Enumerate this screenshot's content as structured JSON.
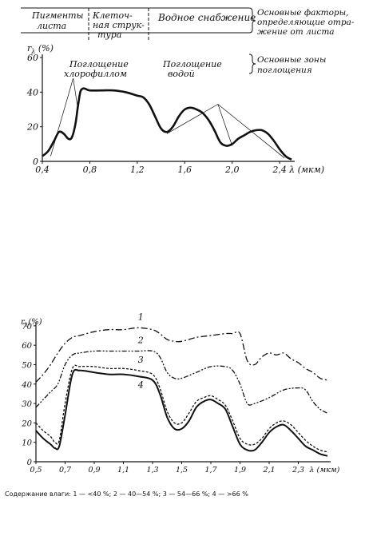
{
  "chart_data": [
    {
      "type": "line",
      "ylabel": "rλ (%)",
      "xlabel": "λ (мкм)",
      "x_tick_labels": [
        "0,4",
        "0,8",
        "1,2",
        "1,6",
        "2,0",
        "2,4"
      ],
      "x_unit_label": "λ (мкм)",
      "y_tick_labels": [
        "0",
        "20",
        "40",
        "60"
      ],
      "xlim": [
        0.4,
        2.5
      ],
      "ylim": [
        0,
        60
      ],
      "grid": false,
      "header": {
        "factors_label": "Основные факторы, определяющие отражение от листа",
        "sections": [
          "Пигменты листа",
          "Клеточная структура",
          "Водное снабжение"
        ]
      },
      "zones_label": "Основные зоны поглощения",
      "annotations": [
        "Поглощение хлорофиллом",
        "Поглощение водой"
      ],
      "series": [
        {
          "x": [
            0.4,
            0.45,
            0.5,
            0.54,
            0.58,
            0.62,
            0.65,
            0.68,
            0.7,
            0.72,
            0.74,
            0.76,
            0.8,
            0.9,
            1.0,
            1.1,
            1.2,
            1.25,
            1.3,
            1.35,
            1.4,
            1.45,
            1.5,
            1.55,
            1.6,
            1.65,
            1.7,
            1.75,
            1.8,
            1.85,
            1.9,
            1.95,
            2.0,
            2.05,
            2.1,
            2.15,
            2.2,
            2.25,
            2.3,
            2.35,
            2.4,
            2.45,
            2.5
          ],
          "y": [
            3,
            6,
            12,
            17,
            16,
            13,
            14,
            22,
            32,
            40,
            42,
            42,
            41,
            41,
            41,
            40,
            38,
            37,
            33,
            26,
            19,
            17,
            20,
            26,
            30,
            31,
            30,
            28,
            24,
            18,
            11,
            9,
            10,
            13,
            15,
            17,
            18,
            18,
            16,
            12,
            7,
            3,
            1
          ]
        }
      ]
    },
    {
      "type": "line",
      "ylabel": "rλ (%)",
      "xlabel": "λ (мкм)",
      "x_tick_labels": [
        "0,5",
        "0,7",
        "0,9",
        "1,1",
        "1,3",
        "1,5",
        "1,7",
        "1,9",
        "2,1",
        "2,3"
      ],
      "x_unit_label": "λ (мкм)",
      "y_tick_labels": [
        "0",
        "10",
        "20",
        "30",
        "40",
        "50",
        "60",
        "70"
      ],
      "xlim": [
        0.5,
        2.5
      ],
      "ylim": [
        0,
        72
      ],
      "grid": false,
      "caption": "Содержание влаги: 1 — <40 %; 2 — 40—54 %; 3 — 54—66 %; 4 — >66 %",
      "series": [
        {
          "name": "1",
          "x": [
            0.5,
            0.55,
            0.6,
            0.65,
            0.7,
            0.75,
            0.8,
            0.9,
            1.0,
            1.1,
            1.2,
            1.3,
            1.35,
            1.4,
            1.45,
            1.5,
            1.6,
            1.7,
            1.8,
            1.85,
            1.9,
            1.95,
            2.0,
            2.05,
            2.1,
            2.15,
            2.2,
            2.25,
            2.3,
            2.35,
            2.4,
            2.45,
            2.5
          ],
          "y": [
            41,
            45,
            50,
            56,
            61,
            64,
            65,
            67,
            68,
            68,
            69,
            68,
            66,
            63,
            62,
            62,
            64,
            65,
            66,
            66,
            66,
            52,
            50,
            54,
            56,
            55,
            56,
            53,
            51,
            48,
            46,
            43,
            42
          ]
        },
        {
          "name": "2",
          "x": [
            0.5,
            0.55,
            0.6,
            0.65,
            0.7,
            0.75,
            0.8,
            0.9,
            1.0,
            1.1,
            1.2,
            1.3,
            1.35,
            1.4,
            1.45,
            1.5,
            1.6,
            1.7,
            1.8,
            1.85,
            1.9,
            1.95,
            2.0,
            2.1,
            2.2,
            2.3,
            2.35,
            2.4,
            2.45,
            2.5
          ],
          "y": [
            28,
            32,
            36,
            40,
            50,
            55,
            56,
            57,
            57,
            57,
            57,
            57,
            54,
            46,
            43,
            43,
            46,
            49,
            49,
            47,
            40,
            30,
            30,
            33,
            37,
            38,
            37,
            31,
            27,
            25
          ]
        },
        {
          "name": "3",
          "x": [
            0.5,
            0.55,
            0.6,
            0.63,
            0.66,
            0.7,
            0.75,
            0.8,
            0.9,
            1.0,
            1.1,
            1.2,
            1.3,
            1.35,
            1.4,
            1.45,
            1.5,
            1.55,
            1.6,
            1.65,
            1.7,
            1.75,
            1.8,
            1.85,
            1.9,
            1.95,
            2.0,
            2.05,
            2.1,
            2.15,
            2.2,
            2.25,
            2.3,
            2.35,
            2.4,
            2.45,
            2.5
          ],
          "y": [
            20,
            16,
            13,
            10,
            11,
            30,
            48,
            49,
            49,
            48,
            48,
            47,
            45,
            38,
            26,
            20,
            20,
            25,
            31,
            33,
            34,
            32,
            29,
            21,
            12,
            9,
            9,
            12,
            17,
            20,
            21,
            19,
            15,
            11,
            8,
            6,
            5
          ]
        },
        {
          "name": "4",
          "x": [
            0.5,
            0.55,
            0.6,
            0.63,
            0.66,
            0.7,
            0.75,
            0.8,
            0.9,
            1.0,
            1.1,
            1.2,
            1.3,
            1.35,
            1.4,
            1.45,
            1.5,
            1.55,
            1.6,
            1.65,
            1.7,
            1.75,
            1.8,
            1.85,
            1.9,
            1.95,
            2.0,
            2.05,
            2.1,
            2.15,
            2.2,
            2.25,
            2.3,
            2.35,
            2.4,
            2.45,
            2.5
          ],
          "y": [
            16,
            12,
            9,
            7,
            8,
            24,
            45,
            47,
            46,
            45,
            45,
            44,
            42,
            35,
            23,
            17,
            17,
            21,
            28,
            31,
            32,
            30,
            27,
            18,
            9,
            6,
            6,
            10,
            15,
            18,
            19,
            16,
            12,
            8,
            6,
            4,
            3
          ]
        }
      ]
    }
  ]
}
